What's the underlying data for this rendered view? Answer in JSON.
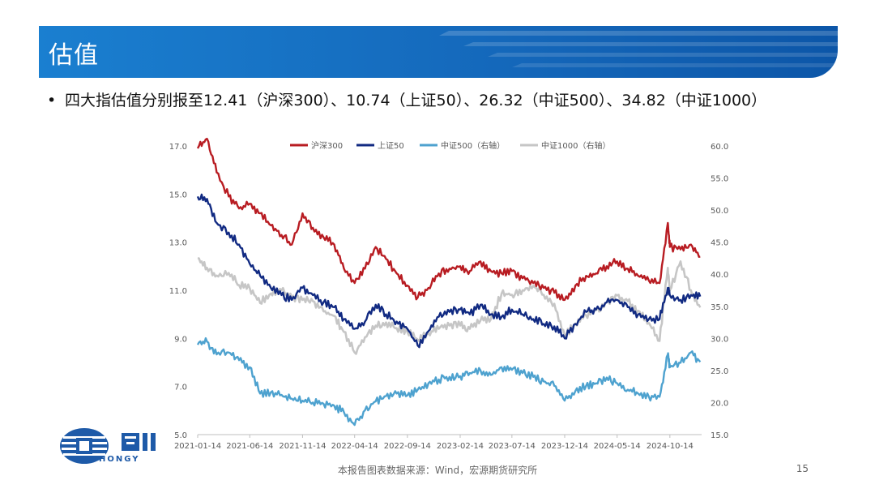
{
  "header": {
    "title": "估值"
  },
  "bullet": {
    "dot": "•",
    "text": "四大指估值分别报至12.41（沪深300）、10.74（上证50）、26.32（中证500）、34.82（中证1000）"
  },
  "footer": {
    "source": "本报告图表数据来源：Wind，宏源期货研究所",
    "page": "15"
  },
  "logo": {
    "text": "HONGY",
    "icon": "hongyuan-logo-icon"
  },
  "colors": {
    "accent": "#1467ba",
    "hs300": "#b81c22",
    "sz50": "#112a82",
    "zz500": "#4ea2cf",
    "zz1000": "#c6c6c6"
  },
  "chart_data": {
    "type": "line",
    "title": "",
    "legend_position": "top",
    "grid": false,
    "x_ticks": [
      "2021-01-14",
      "2021-06-14",
      "2021-11-14",
      "2022-04-14",
      "2022-09-14",
      "2023-02-14",
      "2023-07-14",
      "2023-12-14",
      "2024-05-14",
      "2024-10-14"
    ],
    "left_axis": {
      "ylim": [
        5.0,
        17.0
      ],
      "ticks": [
        "5.0",
        "7.0",
        "9.0",
        "11.0",
        "13.0",
        "15.0",
        "17.0"
      ]
    },
    "right_axis": {
      "ylim": [
        15.0,
        60.0
      ],
      "ticks": [
        "15.0",
        "20.0",
        "25.0",
        "30.0",
        "35.0",
        "40.0",
        "45.0",
        "50.0",
        "55.0",
        "60.0"
      ]
    },
    "series": [
      {
        "name": "沪深300",
        "axis": "left",
        "color": "#b81c22",
        "x": [
          "2021-01-14",
          "2021-02-10",
          "2021-03-10",
          "2021-04-14",
          "2021-05-14",
          "2021-06-14",
          "2021-07-14",
          "2021-08-14",
          "2021-09-14",
          "2021-10-14",
          "2021-11-14",
          "2021-12-14",
          "2022-01-14",
          "2022-02-14",
          "2022-03-14",
          "2022-04-14",
          "2022-05-14",
          "2022-06-14",
          "2022-07-14",
          "2022-08-14",
          "2022-09-14",
          "2022-10-14",
          "2022-11-14",
          "2022-12-14",
          "2023-01-14",
          "2023-02-14",
          "2023-03-14",
          "2023-04-14",
          "2023-05-14",
          "2023-06-14",
          "2023-07-14",
          "2023-08-14",
          "2023-09-14",
          "2023-10-14",
          "2023-11-14",
          "2023-12-14",
          "2024-01-14",
          "2024-02-14",
          "2024-03-14",
          "2024-04-14",
          "2024-05-14",
          "2024-06-14",
          "2024-07-14",
          "2024-08-14",
          "2024-09-14",
          "2024-10-08",
          "2024-10-14",
          "2024-11-14",
          "2024-12-14",
          "2025-01-10"
        ],
        "values": [
          16.9,
          17.3,
          15.9,
          14.9,
          14.4,
          14.6,
          14.2,
          13.7,
          13.3,
          12.9,
          14.2,
          13.6,
          13.2,
          12.9,
          11.9,
          11.3,
          11.9,
          12.8,
          12.3,
          11.7,
          11.2,
          10.7,
          11.1,
          11.7,
          11.9,
          12.0,
          11.8,
          12.2,
          11.8,
          11.7,
          11.8,
          11.5,
          11.3,
          11.1,
          10.9,
          10.6,
          11.2,
          11.6,
          11.7,
          12.0,
          12.2,
          11.9,
          11.6,
          11.4,
          11.3,
          13.8,
          12.8,
          12.7,
          12.9,
          12.4
        ]
      },
      {
        "name": "上证50",
        "axis": "left",
        "color": "#112a82",
        "x": [
          "2021-01-14",
          "2021-02-10",
          "2021-03-10",
          "2021-04-14",
          "2021-05-14",
          "2021-06-14",
          "2021-07-14",
          "2021-08-14",
          "2021-09-14",
          "2021-10-14",
          "2021-11-14",
          "2021-12-14",
          "2022-01-14",
          "2022-02-14",
          "2022-03-14",
          "2022-04-14",
          "2022-05-14",
          "2022-06-14",
          "2022-07-14",
          "2022-08-14",
          "2022-09-14",
          "2022-10-14",
          "2022-11-14",
          "2022-12-14",
          "2023-01-14",
          "2023-02-14",
          "2023-03-14",
          "2023-04-14",
          "2023-05-14",
          "2023-06-14",
          "2023-07-14",
          "2023-08-14",
          "2023-09-14",
          "2023-10-14",
          "2023-11-14",
          "2023-12-14",
          "2024-01-14",
          "2024-02-14",
          "2024-03-14",
          "2024-04-14",
          "2024-05-14",
          "2024-06-14",
          "2024-07-14",
          "2024-08-14",
          "2024-09-14",
          "2024-10-08",
          "2024-10-14",
          "2024-11-14",
          "2024-12-14",
          "2025-01-10"
        ],
        "values": [
          14.9,
          14.8,
          13.8,
          13.4,
          12.9,
          12.1,
          11.6,
          11.1,
          10.8,
          10.6,
          11.1,
          10.8,
          10.5,
          10.3,
          9.8,
          9.4,
          9.7,
          10.4,
          10.0,
          9.7,
          9.4,
          8.7,
          9.3,
          9.9,
          10.1,
          10.2,
          10.0,
          10.4,
          10.0,
          9.9,
          10.2,
          10.0,
          9.8,
          9.6,
          9.5,
          9.0,
          9.6,
          10.1,
          10.2,
          10.5,
          10.6,
          10.3,
          10.0,
          9.8,
          9.8,
          11.1,
          10.8,
          10.6,
          10.8,
          10.74
        ]
      },
      {
        "name": "中证500（右轴）",
        "axis": "right",
        "color": "#4ea2cf",
        "x": [
          "2021-01-14",
          "2021-02-10",
          "2021-03-10",
          "2021-04-14",
          "2021-05-14",
          "2021-06-14",
          "2021-07-14",
          "2021-08-14",
          "2021-09-14",
          "2021-10-14",
          "2021-11-14",
          "2021-12-14",
          "2022-01-14",
          "2022-02-14",
          "2022-03-14",
          "2022-04-14",
          "2022-05-14",
          "2022-06-14",
          "2022-07-14",
          "2022-08-14",
          "2022-09-14",
          "2022-10-14",
          "2022-11-14",
          "2022-12-14",
          "2023-01-14",
          "2023-02-14",
          "2023-03-14",
          "2023-04-14",
          "2023-05-14",
          "2023-06-14",
          "2023-07-14",
          "2023-08-14",
          "2023-09-14",
          "2023-10-14",
          "2023-11-14",
          "2023-12-14",
          "2024-01-14",
          "2024-02-14",
          "2024-03-14",
          "2024-04-14",
          "2024-05-14",
          "2024-06-14",
          "2024-07-14",
          "2024-08-14",
          "2024-09-14",
          "2024-10-08",
          "2024-10-14",
          "2024-11-14",
          "2024-12-14",
          "2025-01-10"
        ],
        "values": [
          29.0,
          29.5,
          27.5,
          27.8,
          26.6,
          25.5,
          21.4,
          21.6,
          21.2,
          20.6,
          20.3,
          20.0,
          19.8,
          19.5,
          18.5,
          16.5,
          18.8,
          20.2,
          21.0,
          21.4,
          21.1,
          22.0,
          23.0,
          23.6,
          24.0,
          24.1,
          24.6,
          25.0,
          24.3,
          25.5,
          25.1,
          24.6,
          24.0,
          23.3,
          22.6,
          20.3,
          21.8,
          22.6,
          23.0,
          23.9,
          23.0,
          22.0,
          21.4,
          20.9,
          20.9,
          27.5,
          25.5,
          26.2,
          27.8,
          26.32
        ]
      },
      {
        "name": "中证1000（右轴）",
        "axis": "right",
        "color": "#c6c6c6",
        "x": [
          "2021-01-14",
          "2021-02-10",
          "2021-03-10",
          "2021-04-14",
          "2021-05-14",
          "2021-06-14",
          "2021-07-14",
          "2021-08-14",
          "2021-09-14",
          "2021-10-14",
          "2021-11-14",
          "2021-12-14",
          "2022-01-14",
          "2022-02-14",
          "2022-03-14",
          "2022-04-14",
          "2022-05-14",
          "2022-06-14",
          "2022-07-14",
          "2022-08-14",
          "2022-09-14",
          "2022-10-14",
          "2022-11-14",
          "2022-12-14",
          "2023-01-14",
          "2023-02-14",
          "2023-03-14",
          "2023-04-14",
          "2023-05-14",
          "2023-06-14",
          "2023-07-14",
          "2023-08-14",
          "2023-09-14",
          "2023-10-14",
          "2023-11-14",
          "2023-12-14",
          "2024-01-14",
          "2024-02-14",
          "2024-03-14",
          "2024-04-14",
          "2024-05-14",
          "2024-06-14",
          "2024-07-14",
          "2024-08-14",
          "2024-09-14",
          "2024-10-08",
          "2024-10-14",
          "2024-11-14",
          "2024-12-14",
          "2025-01-10"
        ],
        "values": [
          42.5,
          41.0,
          39.8,
          40.2,
          38.3,
          37.8,
          35.5,
          37.0,
          37.5,
          36.5,
          36.0,
          35.8,
          34.2,
          33.5,
          31.0,
          27.8,
          30.2,
          32.0,
          32.5,
          31.6,
          31.0,
          29.8,
          30.8,
          31.5,
          32.0,
          32.0,
          31.5,
          32.8,
          33.0,
          37.0,
          36.8,
          37.5,
          38.2,
          36.8,
          35.4,
          30.5,
          32.3,
          33.6,
          34.4,
          35.6,
          36.7,
          35.8,
          34.3,
          32.4,
          29.6,
          41.0,
          37.5,
          42.0,
          37.5,
          34.82
        ]
      }
    ]
  }
}
